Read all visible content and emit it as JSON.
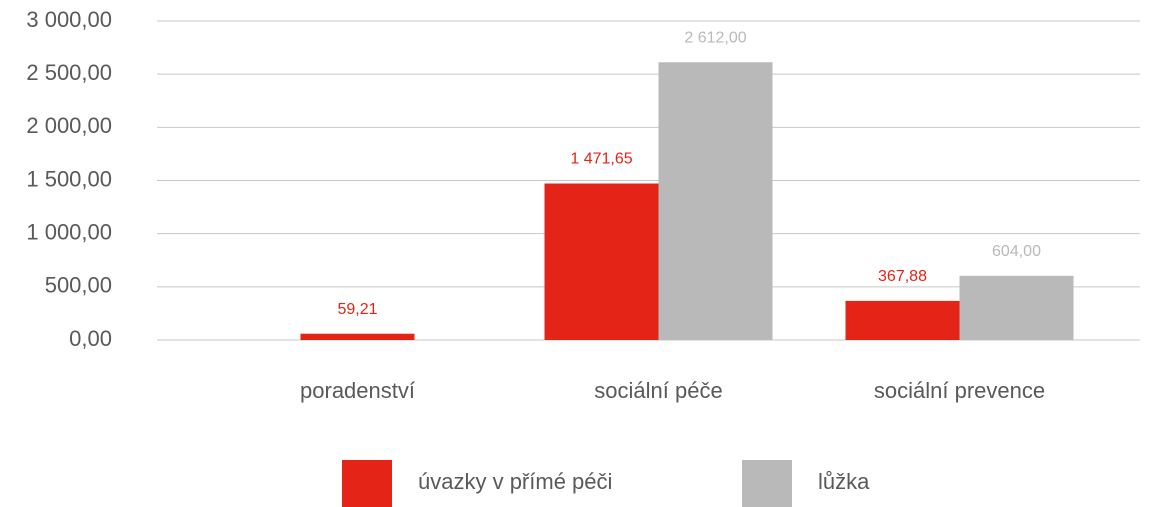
{
  "chart_data": {
    "type": "bar",
    "categories": [
      "poradenství",
      "sociální péče",
      "sociální prevence"
    ],
    "series": [
      {
        "name": "úvazky v přímé péči",
        "color": "#e32416",
        "values": [
          59.21,
          1471.65,
          367.88
        ],
        "value_labels": [
          "59,21",
          "1 471,65",
          "367,88"
        ]
      },
      {
        "name": "lůžka",
        "color": "#b9b9b9",
        "values": [
          null,
          2612,
          604
        ],
        "value_labels": [
          null,
          "2 612,00",
          "604,00"
        ]
      }
    ],
    "ylim": [
      0,
      3000
    ],
    "yticks": [
      {
        "value": 0,
        "label": "0,00"
      },
      {
        "value": 500,
        "label": "500,00"
      },
      {
        "value": 1000,
        "label": "1 000,00"
      },
      {
        "value": 1500,
        "label": "1 500,00"
      },
      {
        "value": 2000,
        "label": "2 000,00"
      },
      {
        "value": 2500,
        "label": "2 500,00"
      },
      {
        "value": 3000,
        "label": "3 000,00"
      }
    ],
    "grid": true,
    "legend": "bottom"
  }
}
